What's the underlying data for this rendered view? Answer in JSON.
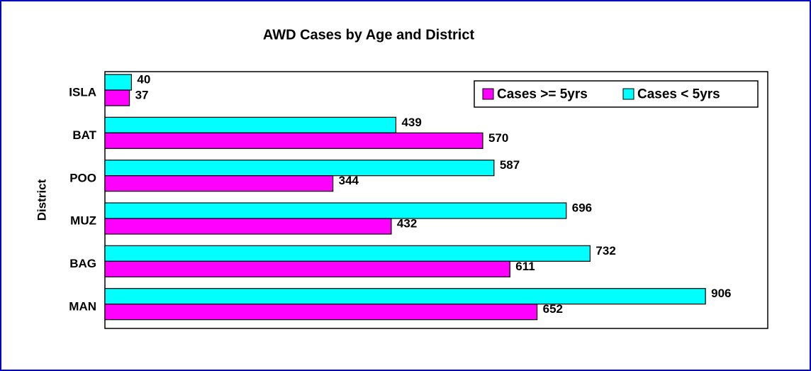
{
  "chart_data": {
    "type": "hbar",
    "title": "AWD Cases by Age and District",
    "y_label": "District",
    "categories": [
      "ISLA",
      "BAT",
      "POO",
      "MUZ",
      "BAG",
      "MAN"
    ],
    "series": [
      {
        "name": "Cases >= 5yrs",
        "color": "#ff00ff",
        "values": [
          37,
          570,
          344,
          432,
          611,
          652
        ]
      },
      {
        "name": "Cases < 5yrs",
        "color": "#00ffff",
        "values": [
          40,
          439,
          587,
          696,
          732,
          906
        ]
      }
    ],
    "xlim": [
      0,
      1000
    ],
    "legend": "upper right"
  }
}
